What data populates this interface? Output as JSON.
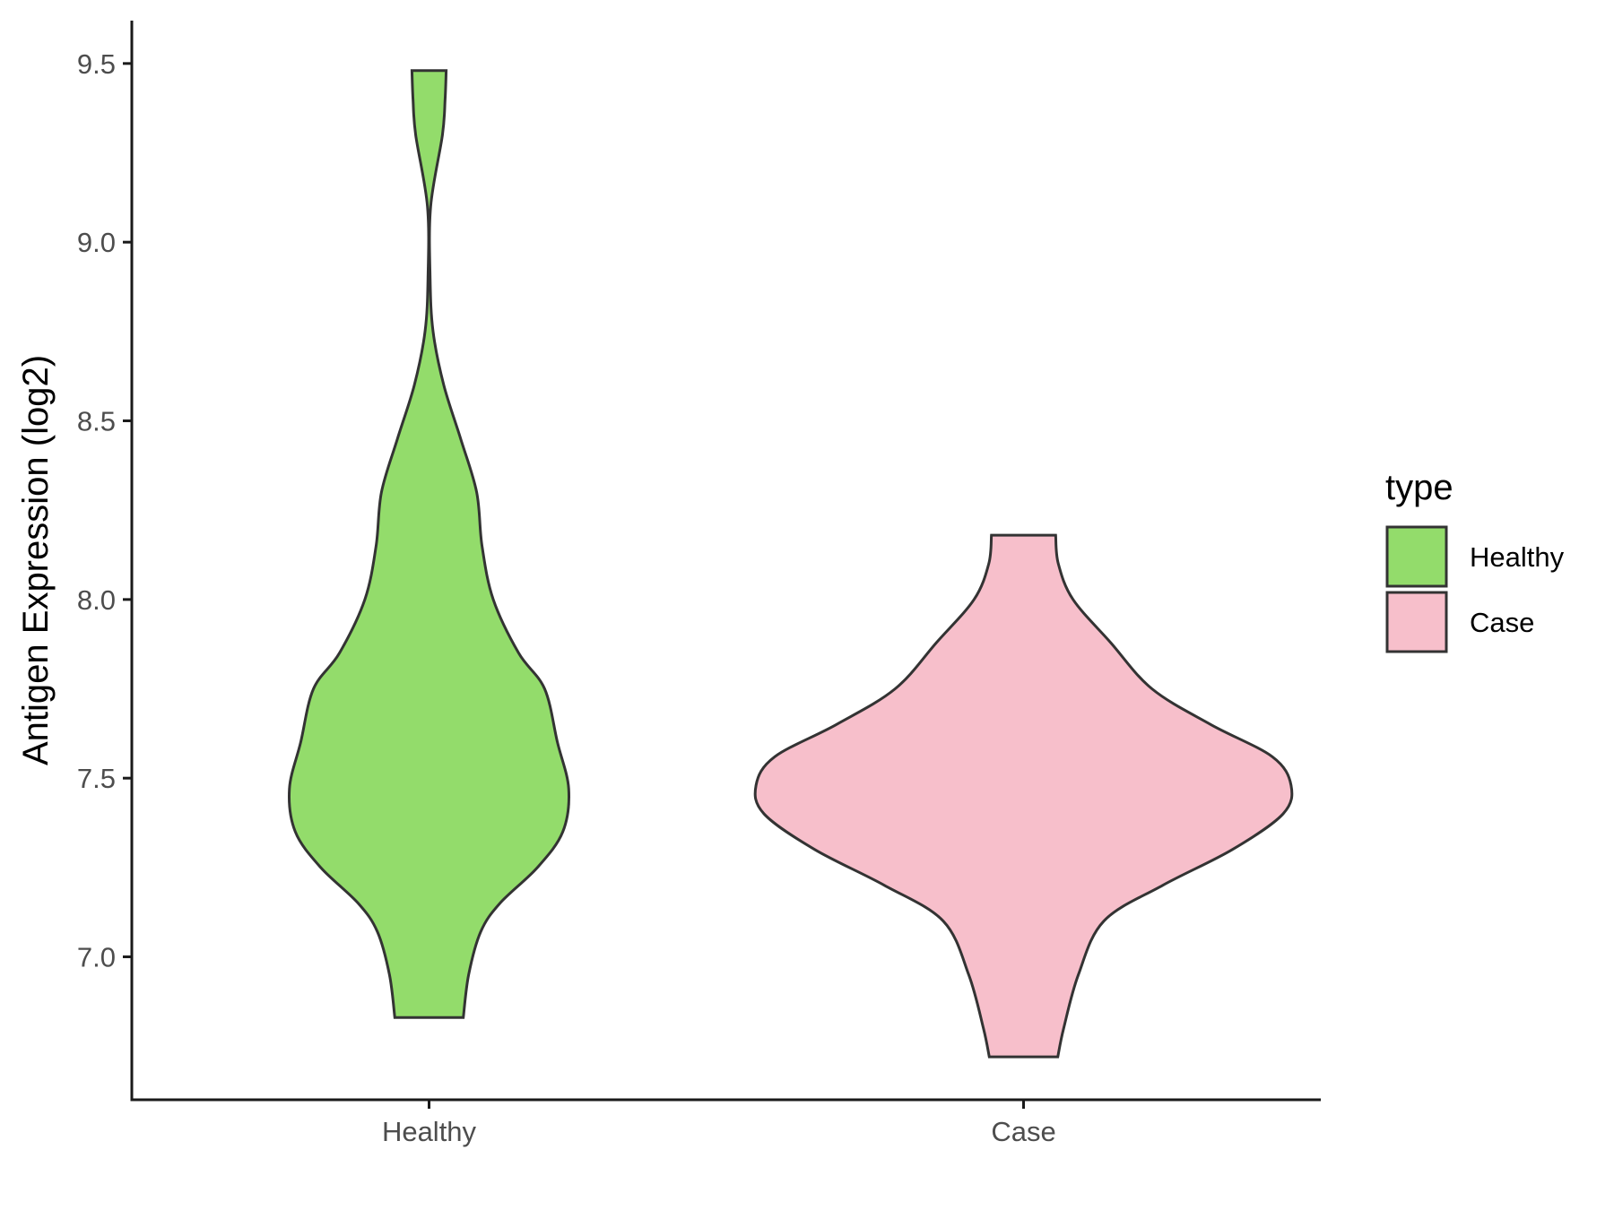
{
  "chart_data": {
    "type": "violin",
    "ylabel": "Antigen Expression (log2)",
    "xlabel": "",
    "categories": [
      "Healthy",
      "Case"
    ],
    "ylim": [
      6.6,
      9.62
    ],
    "y_ticks": [
      "7.0",
      "7.5",
      "8.0",
      "8.5",
      "9.0",
      "9.5"
    ],
    "legend": {
      "title": "type",
      "placement": "right",
      "entries": [
        {
          "label": "Healthy",
          "color": "#93dc6b"
        },
        {
          "label": "Case",
          "color": "#f7bfcb"
        }
      ]
    },
    "series": [
      {
        "name": "Healthy",
        "color": "#93dc6b",
        "y_min": 6.83,
        "y_max": 9.48,
        "density": [
          [
            6.83,
            0.128
          ],
          [
            6.95,
            0.148
          ],
          [
            7.07,
            0.193
          ],
          [
            7.15,
            0.265
          ],
          [
            7.25,
            0.405
          ],
          [
            7.35,
            0.5
          ],
          [
            7.47,
            0.522
          ],
          [
            7.6,
            0.48
          ],
          [
            7.75,
            0.432
          ],
          [
            7.85,
            0.335
          ],
          [
            8.0,
            0.24
          ],
          [
            8.15,
            0.198
          ],
          [
            8.3,
            0.178
          ],
          [
            8.45,
            0.118
          ],
          [
            8.6,
            0.055
          ],
          [
            8.75,
            0.015
          ],
          [
            8.9,
            0.004
          ],
          [
            9.1,
            0.006
          ],
          [
            9.3,
            0.05
          ],
          [
            9.4,
            0.06
          ],
          [
            9.48,
            0.064
          ]
        ]
      },
      {
        "name": "Case",
        "color": "#f7bfcb",
        "y_min": 6.72,
        "y_max": 8.18,
        "density": [
          [
            6.72,
            0.128
          ],
          [
            6.8,
            0.15
          ],
          [
            6.95,
            0.205
          ],
          [
            7.1,
            0.3
          ],
          [
            7.2,
            0.52
          ],
          [
            7.3,
            0.78
          ],
          [
            7.4,
            0.97
          ],
          [
            7.48,
            1.0
          ],
          [
            7.56,
            0.93
          ],
          [
            7.65,
            0.7
          ],
          [
            7.75,
            0.48
          ],
          [
            7.88,
            0.325
          ],
          [
            8.0,
            0.185
          ],
          [
            8.1,
            0.13
          ],
          [
            8.18,
            0.12
          ]
        ]
      }
    ]
  }
}
